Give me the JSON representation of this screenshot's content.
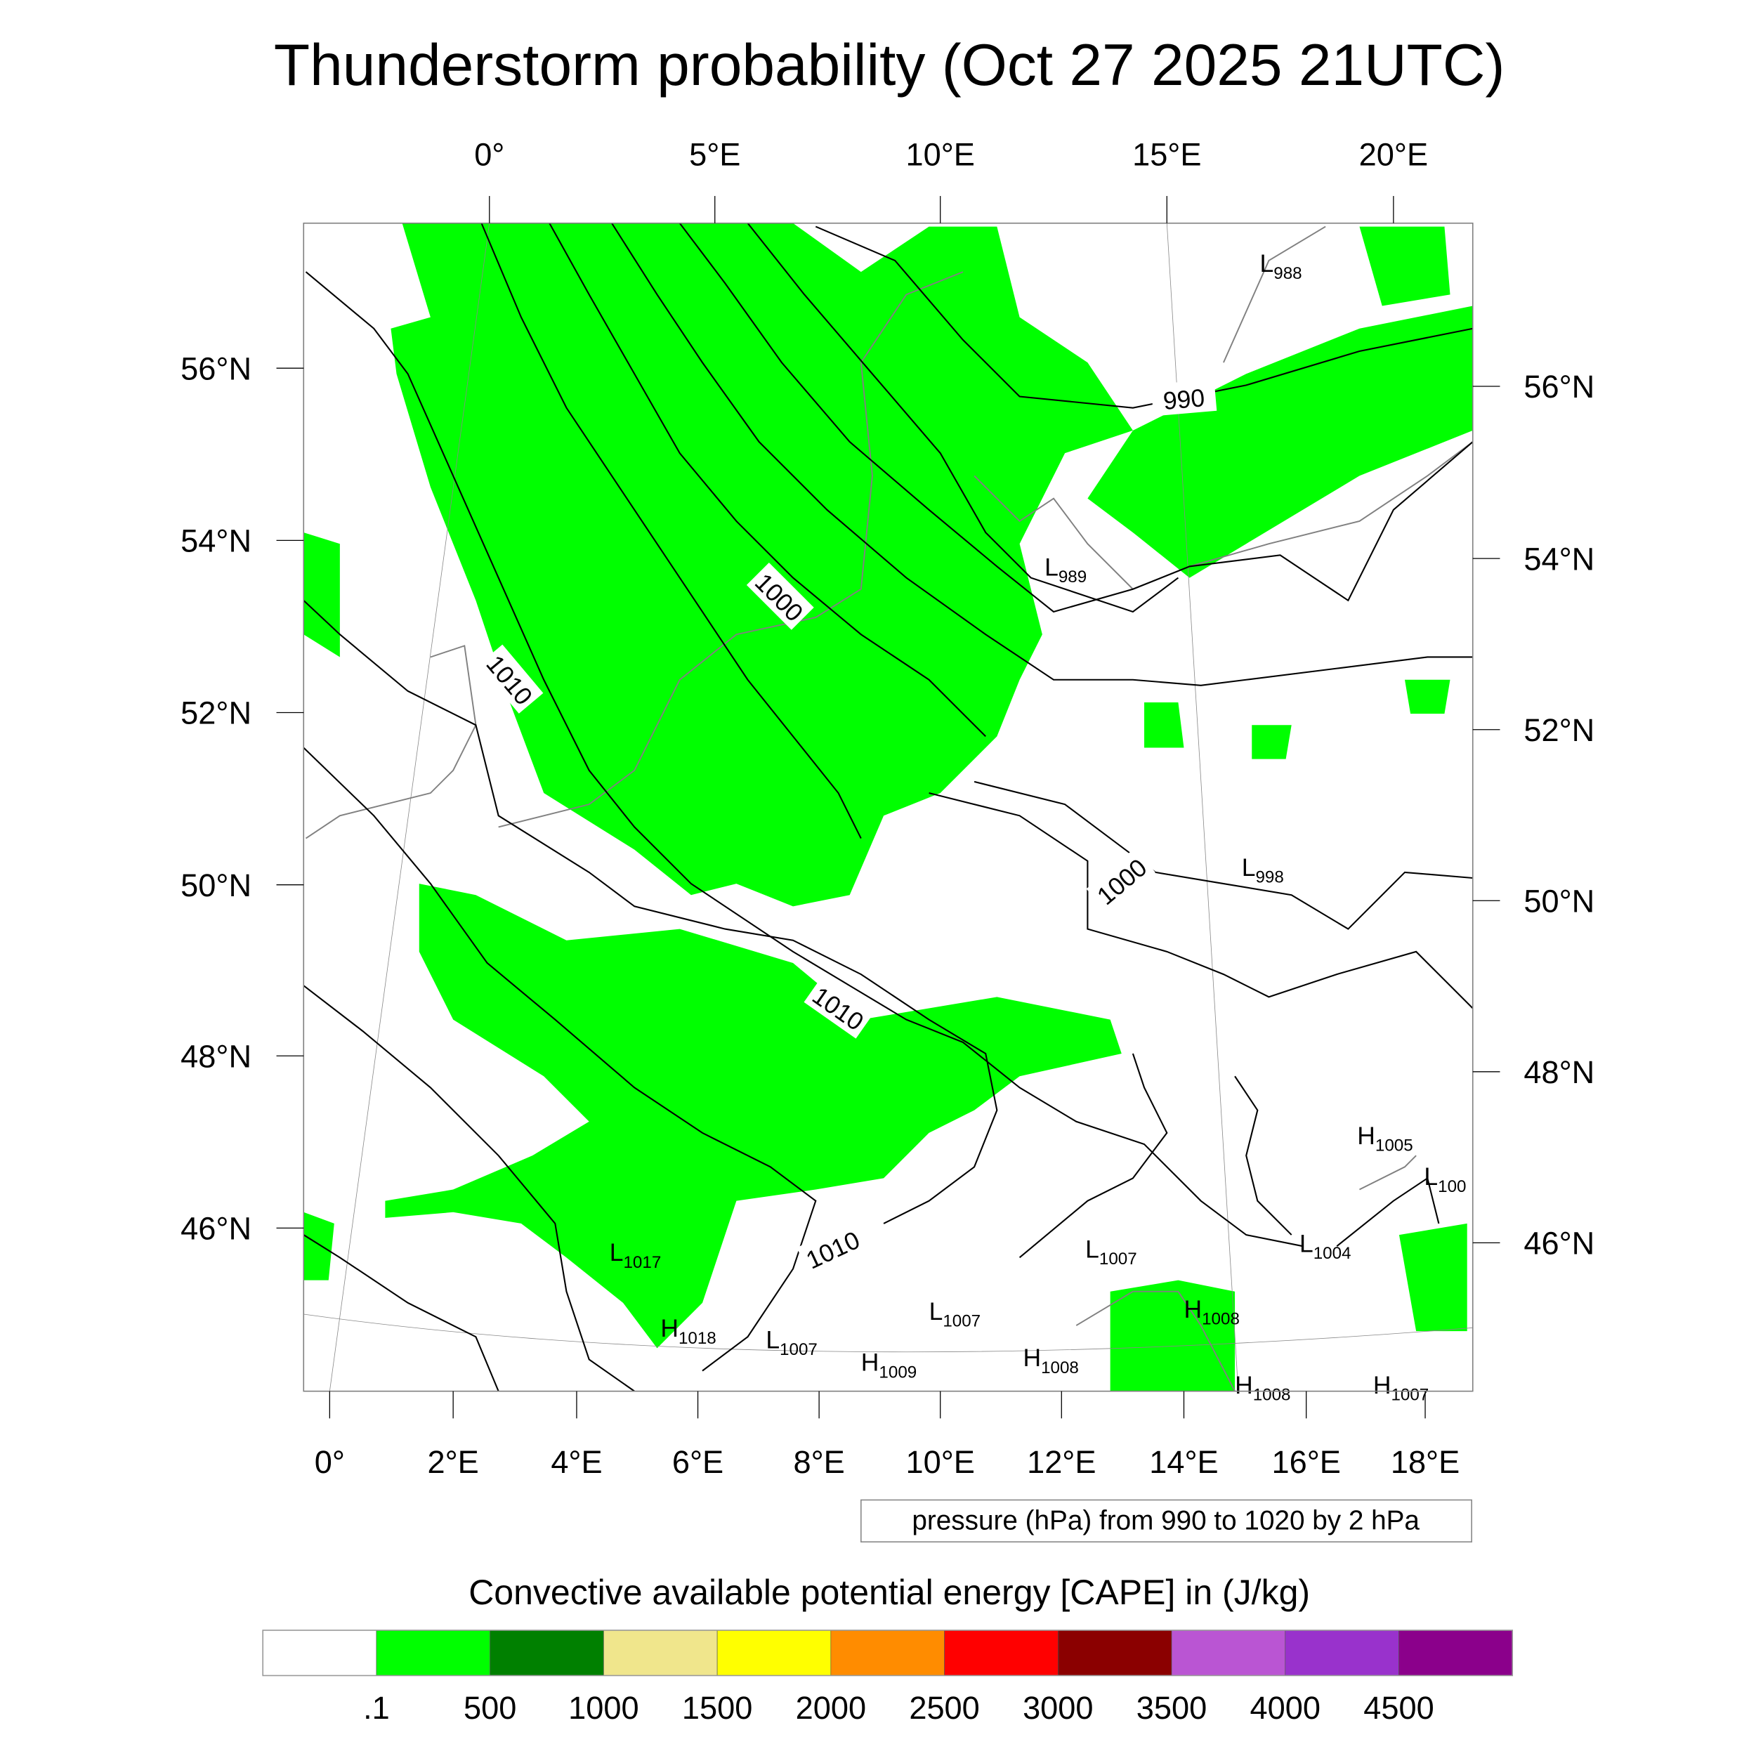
{
  "title": "Thunderstorm probability (Oct 27 2025 21UTC)",
  "top_lon_labels": [
    "0°",
    "5°E",
    "10°E",
    "15°E",
    "20°E"
  ],
  "left_lat_labels": [
    "56°N",
    "54°N",
    "52°N",
    "50°N",
    "48°N",
    "46°N"
  ],
  "right_lat_labels": [
    "56°N",
    "54°N",
    "52°N",
    "50°N",
    "48°N",
    "46°N"
  ],
  "bottom_lon_labels": [
    "0°",
    "2°E",
    "4°E",
    "6°E",
    "8°E",
    "10°E",
    "12°E",
    "14°E",
    "16°E",
    "18°E"
  ],
  "contour_info": "pressure (hPa) from 990 to 1020 by 2 hPa",
  "colorbar_title": "Convective available potential energy [CAPE] in (J/kg)",
  "chart_data": {
    "type": "heatmap",
    "title": "Thunderstorm probability (Oct 27 2025 21UTC)",
    "variable": "CAPE (J/kg)",
    "overlay": "pressure (hPa) from 990 to 1020 by 2 hPa",
    "colorbar": {
      "levels": [
        ".1",
        "500",
        "1000",
        "1500",
        "2000",
        "2500",
        "3000",
        "3500",
        "4000",
        "4500"
      ],
      "colors": [
        "#ffffff",
        "#00ff00",
        "#008000",
        "#f0e68c",
        "#ffff00",
        "#ff8c00",
        "#ff0000",
        "#8b0000",
        "#ba55d3",
        "#9932cc",
        "#8b008b"
      ]
    },
    "contour_labels": [
      "990",
      "1000",
      "1010",
      "1000",
      "1010",
      "1010"
    ],
    "pressure_centers": [
      {
        "type": "L",
        "value": "988"
      },
      {
        "type": "L",
        "value": "989"
      },
      {
        "type": "L",
        "value": "998"
      },
      {
        "type": "H",
        "value": "1005"
      },
      {
        "type": "L",
        "value": "100"
      },
      {
        "type": "L",
        "value": "1017"
      },
      {
        "type": "L",
        "value": "1007"
      },
      {
        "type": "L",
        "value": "1004"
      },
      {
        "type": "L",
        "value": "1007"
      },
      {
        "type": "H",
        "value": "1008"
      },
      {
        "type": "H",
        "value": "1018"
      },
      {
        "type": "L",
        "value": "1007"
      },
      {
        "type": "H",
        "value": "1009"
      },
      {
        "type": "H",
        "value": "1008"
      },
      {
        "type": "H",
        "value": "1008"
      },
      {
        "type": "H",
        "value": "1007"
      }
    ]
  }
}
